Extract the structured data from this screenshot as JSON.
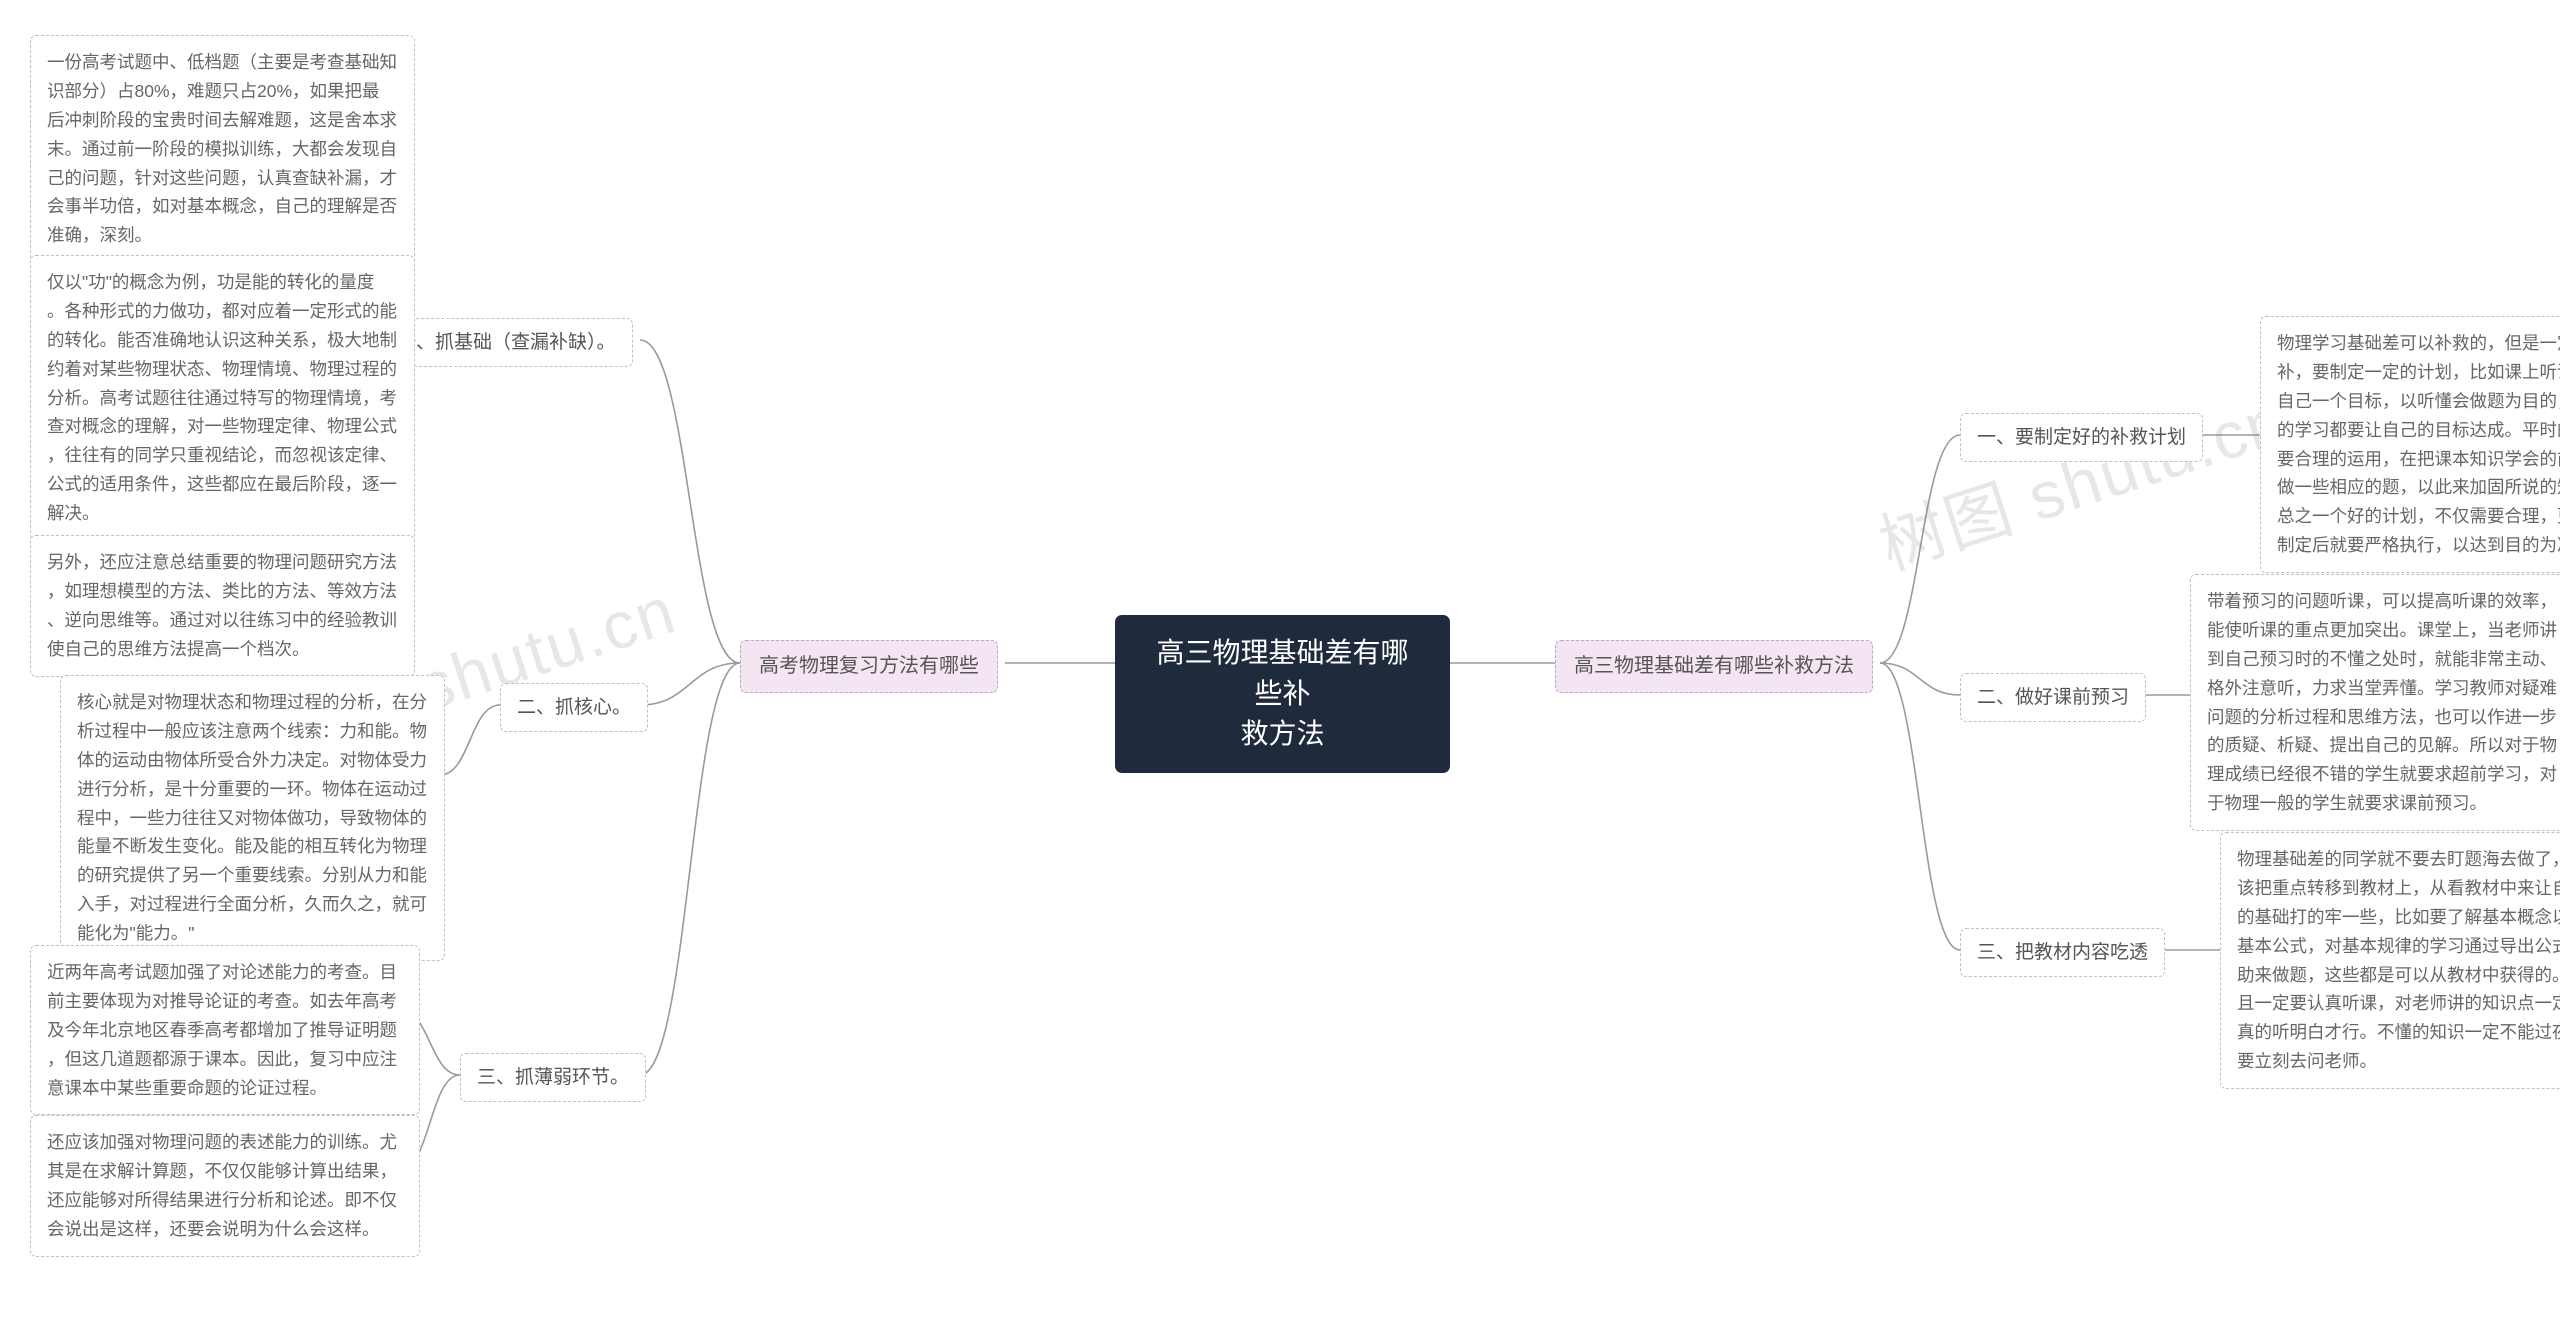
{
  "colors": {
    "background": "#ffffff",
    "center_bg": "#1f2a3c",
    "center_text": "#ffffff",
    "branch_bg": "#f3e5f2",
    "branch_border": "#bfa5bf",
    "node_border": "#c0c0c0",
    "node_text": "#555555",
    "leaf_text": "#666666",
    "line": "#9a9a9a",
    "watermark": "rgba(120,120,120,0.18)"
  },
  "typography": {
    "center_fontsize": 28,
    "branch_fontsize": 20,
    "sub_fontsize": 19,
    "leaf_fontsize": 17.5,
    "line_height": 1.6
  },
  "watermark_text": "树图 shutu.cn",
  "center": {
    "text": "高三物理基础差有哪些补\n救方法"
  },
  "left_branch": {
    "label": "高考物理复习方法有哪些",
    "items": [
      {
        "label": "一、抓基础（查漏补缺）。",
        "leaves": [
          "一份高考试题中、低档题（主要是考查基础知\n识部分）占80%，难题只占20%，如果把最\n后冲刺阶段的宝贵时间去解难题，这是舍本求\n末。通过前一阶段的模拟训练，大都会发现自\n己的问题，针对这些问题，认真查缺补漏，才\n会事半功倍，如对基本概念，自己的理解是否\n准确，深刻。",
          "仅以\"功\"的概念为例，功是能的转化的量度\n。各种形式的力做功，都对应着一定形式的能\n的转化。能否准确地认识这种关系，极大地制\n约着对某些物理状态、物理情境、物理过程的\n分析。高考试题往往通过特写的物理情境，考\n查对概念的理解，对一些物理定律、物理公式\n，往往有的同学只重视结论，而忽视该定律、\n公式的适用条件，这些都应在最后阶段，逐一\n解决。",
          "另外，还应注意总结重要的物理问题研究方法\n，如理想模型的方法、类比的方法、等效方法\n、逆向思维等。通过对以往练习中的经验教训\n使自己的思维方法提高一个档次。"
        ]
      },
      {
        "label": "二、抓核心。",
        "leaves": [
          "核心就是对物理状态和物理过程的分析，在分\n析过程中一般应该注意两个线索：力和能。物\n体的运动由物体所受合外力决定。对物体受力\n进行分析，是十分重要的一环。物体在运动过\n程中，一些力往往又对物体做功，导致物体的\n能量不断发生变化。能及能的相互转化为物理\n的研究提供了另一个重要线索。分别从力和能\n入手，对过程进行全面分析，久而久之，就可\n能化为\"能力。\""
        ]
      },
      {
        "label": "三、抓薄弱环节。",
        "leaves": [
          "近两年高考试题加强了对论述能力的考查。目\n前主要体现为对推导论证的考查。如去年高考\n及今年北京地区春季高考都增加了推导证明题\n，但这几道题都源于课本。因此，复习中应注\n意课本中某些重要命题的论证过程。",
          "还应该加强对物理问题的表述能力的训练。尤\n其是在求解计算题，不仅仅能够计算出结果，\n还应能够对所得结果进行分析和论述。即不仅\n会说出是这样，还要会说明为什么会这样。"
        ]
      }
    ]
  },
  "right_branch": {
    "label": "高三物理基础差有哪些补救方法",
    "items": [
      {
        "label": "一、要制定好的补救计划",
        "leaves": [
          "物理学习基础差可以补救的，但是一定不能乱\n补，要制定一定的计划，比如课上听课也要给\n自己一个目标，以听懂会做题为目的，每节课\n的学习都要让自己的目标达成。平时的时间也\n要合理的运用，在把课本知识学会的前提下再\n做一些相应的题，以此来加固所说的知识点。\n总之一个好的计划，不仅需要合理，更需要在\n制定后就要严格执行，以达到目的为准。"
        ]
      },
      {
        "label": "二、做好课前预习",
        "leaves": [
          "带着预习的问题听课，可以提高听课的效率，\n能使听课的重点更加突出。课堂上，当老师讲\n到自己预习时的不懂之处时，就能非常主动、\n格外注意听，力求当堂弄懂。学习教师对疑难\n问题的分析过程和思维方法，也可以作进一步\n的质疑、析疑、提出自己的见解。所以对于物\n理成绩已经很不错的学生就要求超前学习，对\n于物理一般的学生就要求课前预习。"
        ]
      },
      {
        "label": "三、把教材内容吃透",
        "leaves": [
          "物理基础差的同学就不要去盯题海去做了，应\n该把重点转移到教材上，从看教材中来让自己\n的基础打的牢一些，比如要了解基本概念以及\n基本公式，对基本规律的学习通过导出公式辅\n助来做题，这些都是可以从教材中获得的。而\n且一定要认真听课，对老师讲的知识点一定要\n真的听明白才行。不懂的知识一定不能过夜，\n要立刻去问老师。"
        ]
      }
    ]
  }
}
